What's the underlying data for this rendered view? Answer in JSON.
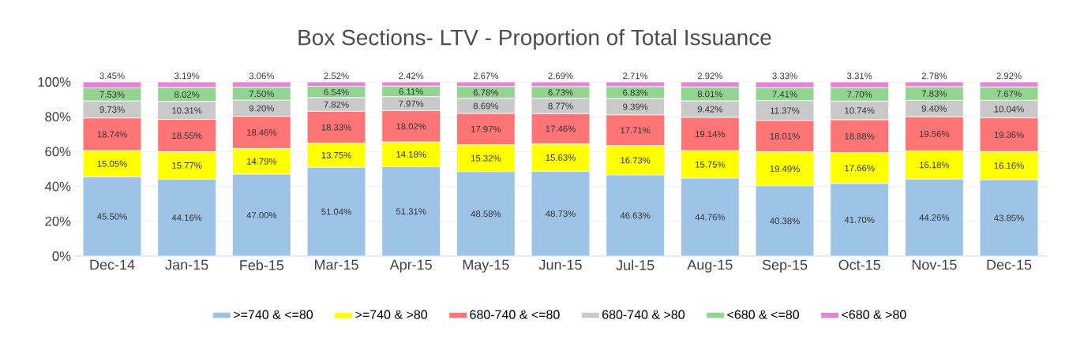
{
  "chart_data": {
    "type": "bar",
    "stacked": true,
    "title": "Box Sections- LTV - Proportion of Total Issuance",
    "categories": [
      "Dec-14",
      "Jan-15",
      "Feb-15",
      "Mar-15",
      "Apr-15",
      "May-15",
      "Jun-15",
      "Jul-15",
      "Aug-15",
      "Sep-15",
      "Oct-15",
      "Nov-15",
      "Dec-15"
    ],
    "ylim": [
      0,
      100
    ],
    "yticks": [
      {
        "value": 0,
        "label": "0%"
      },
      {
        "value": 20,
        "label": "20%"
      },
      {
        "value": 40,
        "label": "40%"
      },
      {
        "value": 60,
        "label": "60%"
      },
      {
        "value": 80,
        "label": "80%"
      },
      {
        "value": 100,
        "label": "100%"
      }
    ],
    "grid": "y",
    "legend": "bottom",
    "series": [
      {
        "name": ">=740 & <=80",
        "color": "#9dc3e6",
        "values": [
          45.5,
          44.16,
          47.0,
          51.04,
          51.31,
          48.58,
          48.73,
          46.63,
          44.76,
          40.38,
          41.7,
          44.26,
          43.85
        ],
        "value_labels": [
          "45.50%",
          "44.16%",
          "47.00%",
          "51.04%",
          "51.31%",
          "48.58%",
          "48.73%",
          "46.63%",
          "44.76%",
          "40.38%",
          "41.70%",
          "44.26%",
          "43.85%"
        ]
      },
      {
        "name": ">=740 & >80",
        "color": "#ffff00",
        "values": [
          15.05,
          15.77,
          14.79,
          13.75,
          14.18,
          15.32,
          15.63,
          16.73,
          15.75,
          19.49,
          17.66,
          16.18,
          16.16
        ],
        "value_labels": [
          "15.05%",
          "15.77%",
          "14.79%",
          "13.75%",
          "14.18%",
          "15.32%",
          "15.63%",
          "16.73%",
          "15.75%",
          "19.49%",
          "17.66%",
          "16.18%",
          "16.16%"
        ]
      },
      {
        "name": "680-740 & <=80",
        "color": "#ff7575",
        "values": [
          18.74,
          18.55,
          18.46,
          18.33,
          18.02,
          17.97,
          17.46,
          17.71,
          19.14,
          18.01,
          18.88,
          19.56,
          19.36
        ],
        "value_labels": [
          "18.74%",
          "18.55%",
          "18.46%",
          "18.33%",
          "18.02%",
          "17.97%",
          "17.46%",
          "17.71%",
          "19.14%",
          "18.01%",
          "18.88%",
          "19.56%",
          "19.36%"
        ]
      },
      {
        "name": "680-740 & >80",
        "color": "#c9c9c9",
        "values": [
          9.73,
          10.31,
          9.2,
          7.82,
          7.97,
          8.69,
          8.77,
          9.39,
          9.42,
          11.37,
          10.74,
          9.4,
          10.04
        ],
        "value_labels": [
          "9.73%",
          "10.31%",
          "9.20%",
          "7.82%",
          "7.97%",
          "8.69%",
          "8.77%",
          "9.39%",
          "9.42%",
          "11.37%",
          "10.74%",
          "9.40%",
          "10.04%"
        ]
      },
      {
        "name": "<680 & <=80",
        "color": "#92d590",
        "values": [
          7.53,
          8.02,
          7.5,
          6.54,
          6.11,
          6.78,
          6.73,
          6.83,
          8.01,
          7.41,
          7.7,
          7.83,
          7.67
        ],
        "value_labels": [
          "7.53%",
          "8.02%",
          "7.50%",
          "6.54%",
          "6.11%",
          "6.78%",
          "6.73%",
          "6.83%",
          "8.01%",
          "7.41%",
          "7.70%",
          "7.83%",
          "7.67%"
        ]
      },
      {
        "name": "<680 & >80",
        "color": "#e484d8",
        "values": [
          3.45,
          3.19,
          3.06,
          2.52,
          2.42,
          2.67,
          2.69,
          2.71,
          2.92,
          3.33,
          3.31,
          2.78,
          2.92
        ],
        "value_labels": [
          "3.45%",
          "3.19%",
          "3.06%",
          "2.52%",
          "2.42%",
          "2.67%",
          "2.69%",
          "2.71%",
          "2.92%",
          "3.33%",
          "3.31%",
          "2.78%",
          "2.92%"
        ]
      }
    ]
  }
}
